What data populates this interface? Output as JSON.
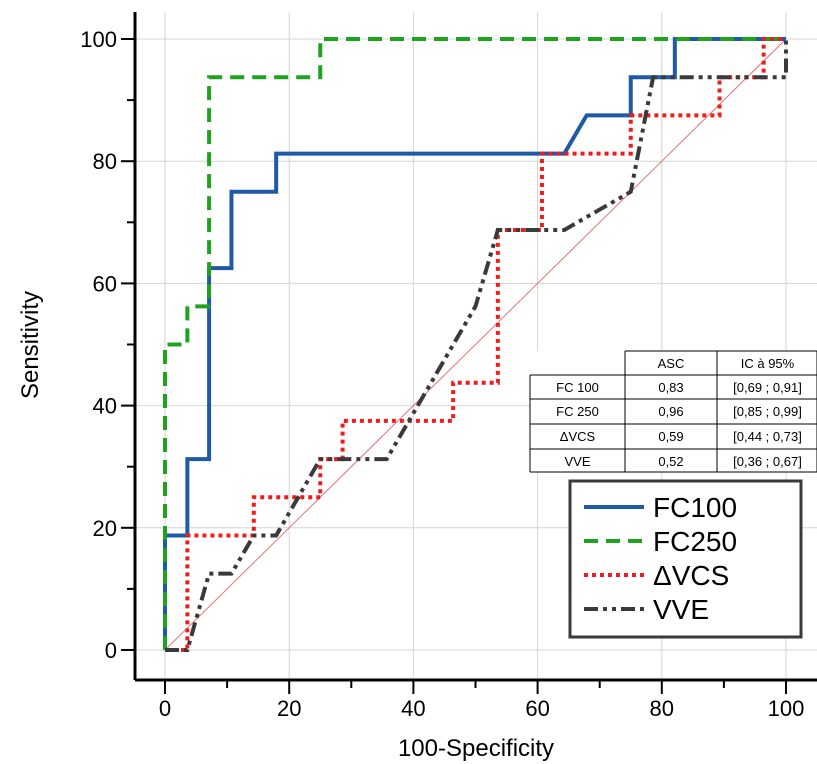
{
  "chart_data": {
    "type": "line",
    "title": "",
    "xlabel": "100-Specificity",
    "ylabel": "Sensitivity",
    "xlim": [
      0,
      100
    ],
    "ylim": [
      0,
      100
    ],
    "x_ticks": [
      "0",
      "20",
      "40",
      "60",
      "80",
      "100"
    ],
    "y_ticks": [
      "0",
      "20",
      "40",
      "60",
      "80",
      "100"
    ],
    "grid": true,
    "legend_position": "bottom-right",
    "reference_line": {
      "from": [
        0,
        0
      ],
      "to": [
        100,
        100
      ],
      "color": "#e57373"
    },
    "series": [
      {
        "name": "FC100",
        "color": "#1f5aa6",
        "dash": "solid",
        "points": [
          [
            0,
            0
          ],
          [
            0,
            18.75
          ],
          [
            3.6,
            18.75
          ],
          [
            3.6,
            31.25
          ],
          [
            7.1,
            31.25
          ],
          [
            7.1,
            62.5
          ],
          [
            10.7,
            62.5
          ],
          [
            10.7,
            75
          ],
          [
            17.9,
            75
          ],
          [
            17.9,
            81.25
          ],
          [
            64.3,
            81.25
          ],
          [
            67.9,
            87.5
          ],
          [
            75,
            87.5
          ],
          [
            75,
            93.75
          ],
          [
            82.1,
            93.75
          ],
          [
            82.1,
            100
          ],
          [
            100,
            100
          ]
        ]
      },
      {
        "name": "FC250",
        "color": "#1fa31f",
        "dash": "dashed",
        "points": [
          [
            0,
            0
          ],
          [
            0,
            50
          ],
          [
            3.6,
            50
          ],
          [
            3.6,
            56.25
          ],
          [
            7.1,
            56.25
          ],
          [
            7.1,
            93.75
          ],
          [
            25,
            93.75
          ],
          [
            25,
            100
          ],
          [
            100,
            100
          ]
        ]
      },
      {
        "name": "ΔVCS",
        "color": "#ee1c1c",
        "dash": "dotted",
        "points": [
          [
            0,
            0
          ],
          [
            3.6,
            0
          ],
          [
            3.6,
            18.75
          ],
          [
            14.3,
            18.75
          ],
          [
            14.3,
            25
          ],
          [
            25,
            25
          ],
          [
            25,
            31.25
          ],
          [
            28.6,
            31.25
          ],
          [
            28.6,
            37.5
          ],
          [
            46.4,
            37.5
          ],
          [
            46.4,
            43.75
          ],
          [
            53.6,
            43.75
          ],
          [
            53.6,
            68.75
          ],
          [
            60.7,
            68.75
          ],
          [
            60.7,
            81.25
          ],
          [
            75,
            81.25
          ],
          [
            75,
            87.5
          ],
          [
            89.3,
            87.5
          ],
          [
            89.3,
            93.75
          ],
          [
            96.4,
            93.75
          ],
          [
            96.4,
            100
          ],
          [
            100,
            100
          ]
        ]
      },
      {
        "name": "VVE",
        "color": "#3a3a3a",
        "dash": "dashdotdot",
        "points": [
          [
            0,
            0
          ],
          [
            3.6,
            0
          ],
          [
            7.1,
            12.5
          ],
          [
            10.7,
            12.5
          ],
          [
            14.3,
            18.75
          ],
          [
            17.9,
            18.75
          ],
          [
            25,
            31.25
          ],
          [
            35.7,
            31.25
          ],
          [
            50,
            56.25
          ],
          [
            53.6,
            68.75
          ],
          [
            64.3,
            68.75
          ],
          [
            75,
            75
          ],
          [
            78.6,
            93.75
          ],
          [
            100,
            93.75
          ],
          [
            100,
            100
          ]
        ]
      }
    ],
    "table": {
      "headers": [
        "",
        "ASC",
        "IC à 95%"
      ],
      "rows": [
        [
          "FC 100",
          "0,83",
          "[0,69 ; 0,91]"
        ],
        [
          "FC 250",
          "0,96",
          "[0,85 ; 0,99]"
        ],
        [
          "ΔVCS",
          "0,59",
          "[0,44 ; 0,73]"
        ],
        [
          "VVE",
          "0,52",
          "[0,36 ; 0,67]"
        ]
      ]
    }
  }
}
